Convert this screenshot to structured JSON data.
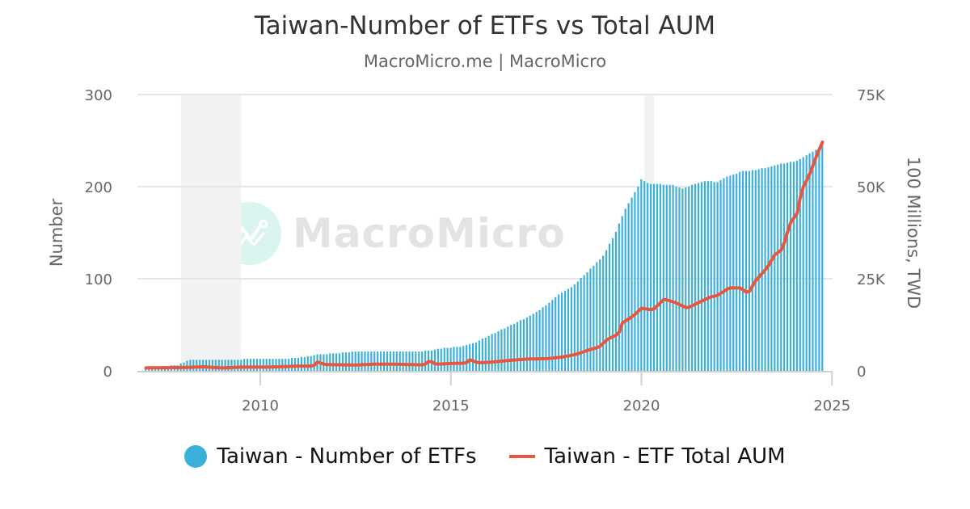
{
  "header": {
    "title": "Taiwan-Number of ETFs vs Total AUM",
    "subtitle": "MacroMicro.me | MacroMicro"
  },
  "watermark": {
    "text": "MacroMicro",
    "icon": "macromicro-logo-icon"
  },
  "legend": {
    "items": [
      {
        "label": "Taiwan - Number of ETFs",
        "color": "#3ab0d9",
        "symbol": "circle"
      },
      {
        "label": "Taiwan - ETF Total AUM",
        "color": "#e8563d",
        "symbol": "line"
      }
    ]
  },
  "axes": {
    "left": {
      "title": "Number",
      "ticks": [
        "0",
        "100",
        "200",
        "300"
      ]
    },
    "right": {
      "title": "100 Millions, TWD",
      "ticks": [
        "0",
        "25K",
        "50K",
        "75K"
      ]
    },
    "x": {
      "ticks": [
        "2010",
        "2015",
        "2020",
        "2025"
      ]
    }
  },
  "chart_data": {
    "type": "bar+line",
    "title": "Taiwan-Number of ETFs vs Total AUM",
    "subtitle": "MacroMicro.me | MacroMicro",
    "xlabel": "",
    "ylabel": "Number",
    "y2label": "100 Millions, TWD",
    "ylim": [
      0,
      300
    ],
    "y2lim": [
      0,
      75000
    ],
    "xlim": [
      2006.7,
      2025.0
    ],
    "x_ticks": [
      2010,
      2015,
      2020,
      2025
    ],
    "y_ticks": [
      0,
      100,
      200,
      300
    ],
    "y2_ticks": [
      0,
      25000,
      50000,
      75000
    ],
    "grid": true,
    "legend_position": "bottom",
    "recession_shading": [
      [
        2007.92,
        2009.5
      ],
      [
        2020.08,
        2020.33
      ]
    ],
    "x_start": 2007.0,
    "x_step_months": 1,
    "series": [
      {
        "name": "Taiwan - Number of ETFs",
        "type": "bar",
        "axis": "left",
        "color": "#3ab0d9",
        "anchors": [
          [
            2007.0,
            2
          ],
          [
            2007.4,
            5
          ],
          [
            2007.8,
            6
          ],
          [
            2008.0,
            9
          ],
          [
            2008.1,
            12
          ],
          [
            2009.0,
            12
          ],
          [
            2009.5,
            12
          ],
          [
            2009.6,
            13
          ],
          [
            2010.5,
            13
          ],
          [
            2011.0,
            14
          ],
          [
            2011.3,
            16
          ],
          [
            2011.5,
            18
          ],
          [
            2012.0,
            19
          ],
          [
            2012.5,
            21
          ],
          [
            2014.0,
            21
          ],
          [
            2014.5,
            22
          ],
          [
            2014.8,
            25
          ],
          [
            2015.2,
            26
          ],
          [
            2015.6,
            30
          ],
          [
            2015.9,
            36
          ],
          [
            2016.2,
            42
          ],
          [
            2016.6,
            50
          ],
          [
            2017.0,
            58
          ],
          [
            2017.4,
            68
          ],
          [
            2017.8,
            82
          ],
          [
            2018.2,
            92
          ],
          [
            2018.6,
            108
          ],
          [
            2019.0,
            125
          ],
          [
            2019.3,
            148
          ],
          [
            2019.6,
            178
          ],
          [
            2019.9,
            198
          ],
          [
            2020.0,
            208
          ],
          [
            2020.2,
            203
          ],
          [
            2020.8,
            202
          ],
          [
            2021.1,
            198
          ],
          [
            2021.4,
            203
          ],
          [
            2021.7,
            206
          ],
          [
            2022.0,
            205
          ],
          [
            2022.3,
            212
          ],
          [
            2022.7,
            217
          ],
          [
            2023.0,
            218
          ],
          [
            2023.4,
            222
          ],
          [
            2023.8,
            226
          ],
          [
            2024.1,
            228
          ],
          [
            2024.4,
            236
          ],
          [
            2024.7,
            242
          ],
          [
            2024.83,
            252
          ]
        ]
      },
      {
        "name": "Taiwan - ETF Total AUM",
        "type": "line",
        "axis": "right",
        "color": "#e8563d",
        "anchors": [
          [
            2007.0,
            800
          ],
          [
            2008.0,
            900
          ],
          [
            2008.5,
            1100
          ],
          [
            2009.0,
            800
          ],
          [
            2009.5,
            1000
          ],
          [
            2010.0,
            1000
          ],
          [
            2010.5,
            1100
          ],
          [
            2011.0,
            1300
          ],
          [
            2011.4,
            1300
          ],
          [
            2011.5,
            2400
          ],
          [
            2011.7,
            1700
          ],
          [
            2012.5,
            1600
          ],
          [
            2013.0,
            1800
          ],
          [
            2013.5,
            1800
          ],
          [
            2014.0,
            1700
          ],
          [
            2014.3,
            1600
          ],
          [
            2014.45,
            2800
          ],
          [
            2014.6,
            1800
          ],
          [
            2015.0,
            2000
          ],
          [
            2015.4,
            2100
          ],
          [
            2015.5,
            3000
          ],
          [
            2015.7,
            2200
          ],
          [
            2016.0,
            2300
          ],
          [
            2016.5,
            2800
          ],
          [
            2017.0,
            3200
          ],
          [
            2017.5,
            3300
          ],
          [
            2017.9,
            3700
          ],
          [
            2018.3,
            4500
          ],
          [
            2018.6,
            5600
          ],
          [
            2018.9,
            6500
          ],
          [
            2019.1,
            8500
          ],
          [
            2019.4,
            10000
          ],
          [
            2019.5,
            13000
          ],
          [
            2019.8,
            15000
          ],
          [
            2020.0,
            17000
          ],
          [
            2020.3,
            16500
          ],
          [
            2020.6,
            19500
          ],
          [
            2020.9,
            18500
          ],
          [
            2021.2,
            17000
          ],
          [
            2021.5,
            18500
          ],
          [
            2021.8,
            20000
          ],
          [
            2022.0,
            20500
          ],
          [
            2022.3,
            22500
          ],
          [
            2022.6,
            22500
          ],
          [
            2022.8,
            21000
          ],
          [
            2023.0,
            24500
          ],
          [
            2023.3,
            28000
          ],
          [
            2023.5,
            31500
          ],
          [
            2023.7,
            33000
          ],
          [
            2023.9,
            40000
          ],
          [
            2024.1,
            43000
          ],
          [
            2024.2,
            49000
          ],
          [
            2024.4,
            53000
          ],
          [
            2024.6,
            58500
          ],
          [
            2024.83,
            64000
          ]
        ]
      }
    ]
  }
}
